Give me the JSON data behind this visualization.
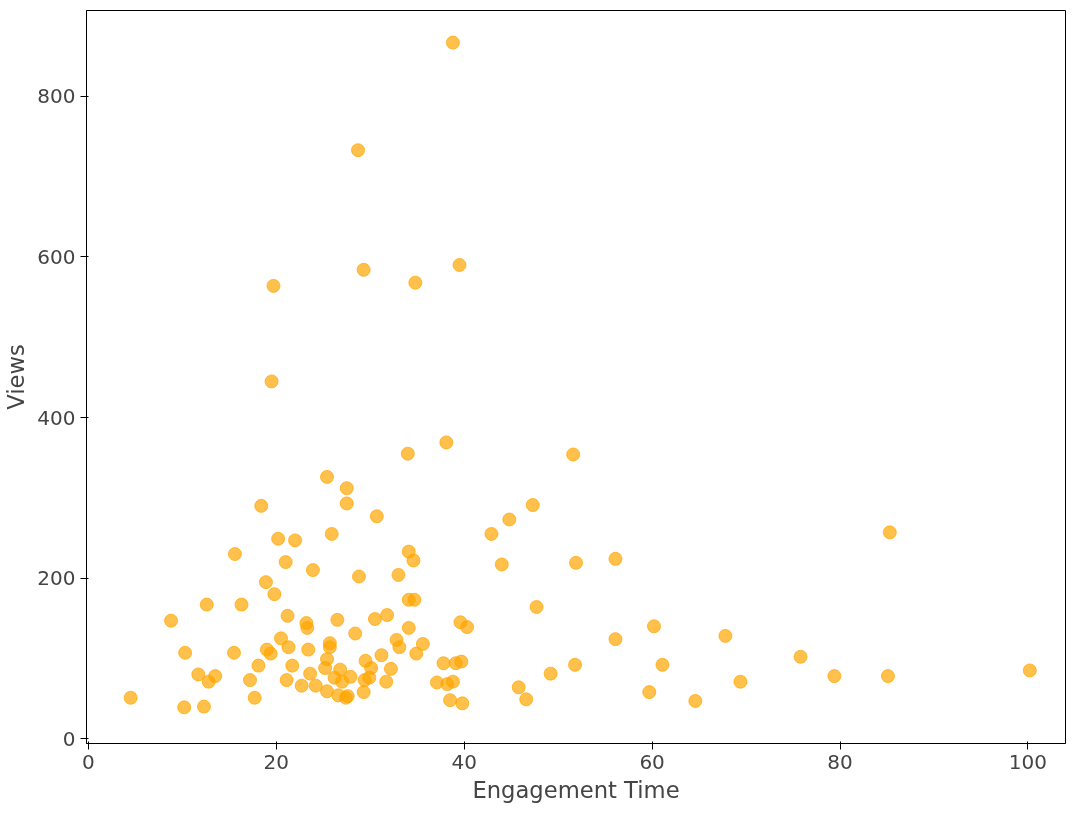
{
  "chart_data": {
    "type": "scatter",
    "xlabel": "Engagement Time",
    "ylabel": "Views",
    "xlim": [
      -0.2,
      104
    ],
    "ylim": [
      -6,
      907
    ],
    "xticks": [
      0,
      20,
      40,
      60,
      80,
      100
    ],
    "yticks": [
      0,
      200,
      400,
      600,
      800
    ],
    "grid": false,
    "marker": "circle",
    "series": [
      {
        "color": "#ffa500",
        "x": [
          4.5,
          8.8,
          10.3,
          10.2,
          11.7,
          12.6,
          12.8,
          13.5,
          12.3,
          15.5,
          15.6,
          16.3,
          17.2,
          17.7,
          18.4,
          18.1,
          18.9,
          19.0,
          19.5,
          19.7,
          19.8,
          20.2,
          19.4,
          20.5,
          21.0,
          21.2,
          21.1,
          21.3,
          22.0,
          21.7,
          22.7,
          23.2,
          23.3,
          23.4,
          23.9,
          23.6,
          24.2,
          25.4,
          25.7,
          25.7,
          25.4,
          25.2,
          25.4,
          25.9,
          26.2,
          26.5,
          26.6,
          26.8,
          27.5,
          27.5,
          27.4,
          27.6,
          27.0,
          27.9,
          28.4,
          28.7,
          28.8,
          29.3,
          29.3,
          29.5,
          29.9,
          29.4,
          30.1,
          30.5,
          30.7,
          31.2,
          31.7,
          31.8,
          32.2,
          32.8,
          33.0,
          33.1,
          34.0,
          34.1,
          34.1,
          34.1,
          34.6,
          34.7,
          34.8,
          34.9,
          35.6,
          37.1,
          37.8,
          38.1,
          38.2,
          38.5,
          38.8,
          38.8,
          39.1,
          39.5,
          39.6,
          39.7,
          39.8,
          40.3,
          42.9,
          44.0,
          44.8,
          45.8,
          46.6,
          47.3,
          47.7,
          49.2,
          51.6,
          51.9,
          51.8,
          56.1,
          56.1,
          59.7,
          60.2,
          61.1,
          64.6,
          67.8,
          69.4,
          75.8,
          79.4,
          85.1,
          85.3,
          100.2
        ],
        "values": [
          51,
          147,
          107,
          39,
          80,
          167,
          71,
          78,
          40,
          107,
          230,
          167,
          73,
          51,
          290,
          91,
          195,
          111,
          445,
          564,
          180,
          249,
          106,
          125,
          220,
          153,
          73,
          114,
          247,
          91,
          66,
          144,
          138,
          111,
          210,
          81,
          66,
          326,
          114,
          119,
          99,
          88,
          59,
          255,
          76,
          148,
          54,
          86,
          312,
          293,
          51,
          53,
          71,
          77,
          131,
          733,
          202,
          584,
          58,
          97,
          76,
          73,
          88,
          149,
          277,
          104,
          71,
          154,
          87,
          123,
          204,
          114,
          355,
          233,
          138,
          173,
          222,
          173,
          568,
          106,
          118,
          70,
          94,
          369,
          68,
          48,
          71,
          867,
          94,
          590,
          145,
          96,
          44,
          139,
          255,
          217,
          273,
          64,
          49,
          291,
          164,
          81,
          354,
          219,
          92,
          224,
          124,
          58,
          140,
          92,
          47,
          128,
          71,
          102,
          78,
          78,
          257,
          85
        ]
      }
    ]
  }
}
